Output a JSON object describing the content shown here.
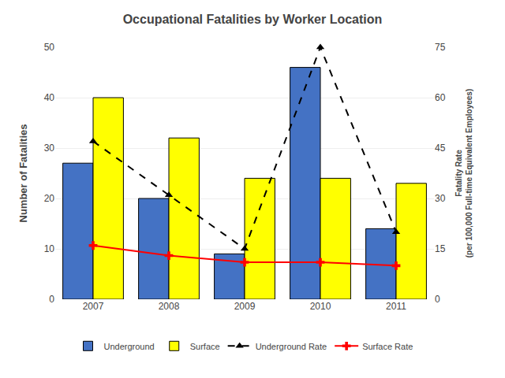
{
  "chart_data": {
    "type": "bar",
    "title": "Occupational Fatalities by Worker Location",
    "categories": [
      "2007",
      "2008",
      "2009",
      "2010",
      "2011"
    ],
    "ylabel": "Number of Fatalities",
    "y2label": "Fatality Rate\n(per 100,000 Full-time Equivalent Employees)",
    "ylim": [
      0,
      50
    ],
    "yticks": [
      0,
      10,
      20,
      30,
      40,
      50
    ],
    "y2lim": [
      0,
      75
    ],
    "y2ticks": [
      0,
      15,
      30,
      45,
      60,
      75
    ],
    "grid": true,
    "legend": "bottom",
    "series": [
      {
        "name": "Underground",
        "type": "bar",
        "color": "#4472C4",
        "values": [
          27,
          20,
          9,
          46,
          14
        ]
      },
      {
        "name": "Surface",
        "type": "bar",
        "color": "#FFFF00",
        "values": [
          40,
          32,
          24,
          24,
          23
        ]
      },
      {
        "name": "Underground Rate",
        "type": "line",
        "axis": "y2",
        "color": "#000000",
        "marker": "triangle-up",
        "line_style": "dash",
        "values": [
          47,
          31,
          15,
          75,
          20
        ]
      },
      {
        "name": "Surface Rate",
        "type": "line",
        "axis": "y2",
        "color": "#FF0000",
        "marker": "cross",
        "line_style": "solid",
        "values": [
          16,
          13,
          11,
          11,
          10
        ]
      }
    ]
  }
}
